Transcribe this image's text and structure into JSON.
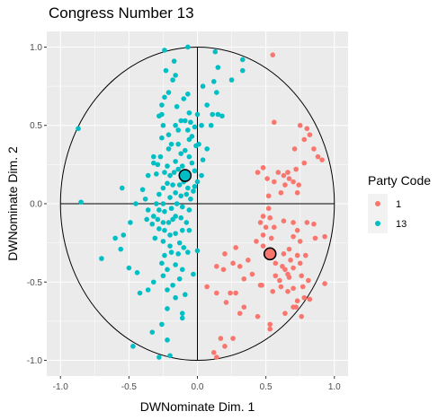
{
  "chart_data": {
    "type": "scatter",
    "title": "Congress Number  13",
    "xlabel": "DWNominate Dim. 1",
    "ylabel": "DWNominate Dim. 2",
    "xlim": [
      -1.1,
      1.1
    ],
    "ylim": [
      -1.1,
      1.1
    ],
    "x_ticks": [
      -1.0,
      -0.5,
      0.0,
      0.5,
      1.0
    ],
    "x_tick_labels": [
      "-1.0",
      "-0.5",
      "0.0",
      "0.5",
      "1.0"
    ],
    "y_ticks": [
      -1.0,
      -0.5,
      0.0,
      0.5,
      1.0
    ],
    "y_tick_labels": [
      "-1.0",
      "-0.5",
      "0.0",
      "0.5",
      "1.0"
    ],
    "grid": true,
    "panel_background": "#ebebeb",
    "reference_circle": {
      "center": [
        0,
        0
      ],
      "radius": 1
    },
    "legend": {
      "title": "Party Code",
      "placement": "right",
      "entries": [
        {
          "label": "1",
          "color": "#f8766d"
        },
        {
          "label": "13",
          "color": "#00bfc4"
        }
      ]
    },
    "series": [
      {
        "name": "1",
        "color": "#f8766d",
        "centroid": [
          0.53,
          -0.32
        ],
        "points": [
          [
            0.55,
            0.95
          ],
          [
            0.56,
            0.52
          ],
          [
            0.75,
            0.5
          ],
          [
            0.8,
            0.48
          ],
          [
            0.82,
            0.44
          ],
          [
            0.78,
            0.41
          ],
          [
            0.71,
            0.35
          ],
          [
            0.85,
            0.35
          ],
          [
            0.88,
            0.3
          ],
          [
            0.91,
            0.28
          ],
          [
            0.78,
            0.26
          ],
          [
            0.59,
            0.2
          ],
          [
            0.66,
            0.2
          ],
          [
            0.72,
            0.22
          ],
          [
            0.63,
            0.18
          ],
          [
            0.48,
            0.23
          ],
          [
            0.44,
            0.2
          ],
          [
            0.51,
            0.16
          ],
          [
            0.56,
            0.14
          ],
          [
            0.64,
            0.12
          ],
          [
            0.74,
            0.12
          ],
          [
            0.7,
            0.14
          ],
          [
            0.67,
            0.16
          ],
          [
            0.73,
            0.07
          ],
          [
            0.52,
            0.05
          ],
          [
            0.61,
            0.07
          ],
          [
            0.52,
            -0.03
          ],
          [
            0.48,
            -0.08
          ],
          [
            0.53,
            -0.09
          ],
          [
            0.46,
            -0.12
          ],
          [
            0.5,
            -0.15
          ],
          [
            0.56,
            -0.15
          ],
          [
            0.48,
            -0.2
          ],
          [
            0.43,
            -0.24
          ],
          [
            0.54,
            -0.22
          ],
          [
            0.48,
            -0.27
          ],
          [
            0.63,
            -0.11
          ],
          [
            0.7,
            -0.12
          ],
          [
            0.73,
            -0.17
          ],
          [
            0.8,
            -0.12
          ],
          [
            0.85,
            -0.13
          ],
          [
            0.86,
            -0.22
          ],
          [
            0.93,
            -0.21
          ],
          [
            0.7,
            -0.21
          ],
          [
            0.75,
            -0.24
          ],
          [
            0.67,
            -0.29
          ],
          [
            0.63,
            -0.32
          ],
          [
            0.73,
            -0.33
          ],
          [
            0.79,
            -0.33
          ],
          [
            0.68,
            -0.36
          ],
          [
            0.75,
            -0.38
          ],
          [
            0.57,
            -0.38
          ],
          [
            0.62,
            -0.4
          ],
          [
            0.64,
            -0.42
          ],
          [
            0.7,
            -0.41
          ],
          [
            0.66,
            -0.45
          ],
          [
            0.57,
            -0.46
          ],
          [
            0.6,
            -0.49
          ],
          [
            0.67,
            -0.47
          ],
          [
            0.76,
            -0.46
          ],
          [
            0.81,
            -0.49
          ],
          [
            0.93,
            -0.51
          ],
          [
            0.77,
            -0.53
          ],
          [
            0.7,
            -0.54
          ],
          [
            0.61,
            -0.53
          ],
          [
            0.55,
            -0.56
          ],
          [
            0.66,
            -0.56
          ],
          [
            0.46,
            -0.52
          ],
          [
            0.4,
            -0.45
          ],
          [
            0.34,
            -0.48
          ],
          [
            0.31,
            -0.4
          ],
          [
            0.37,
            -0.36
          ],
          [
            0.26,
            -0.38
          ],
          [
            0.19,
            -0.42
          ],
          [
            0.14,
            -0.4
          ],
          [
            0.2,
            -0.32
          ],
          [
            0.28,
            -0.28
          ],
          [
            0.07,
            -0.53
          ],
          [
            0.14,
            -0.57
          ],
          [
            0.24,
            -0.57
          ],
          [
            0.28,
            -0.57
          ],
          [
            0.21,
            -0.63
          ],
          [
            0.34,
            -0.66
          ],
          [
            0.31,
            -0.7
          ],
          [
            0.44,
            -0.72
          ],
          [
            0.53,
            -0.77
          ],
          [
            0.64,
            -0.7
          ],
          [
            0.7,
            -0.66
          ],
          [
            0.73,
            -0.62
          ],
          [
            0.78,
            -0.6
          ],
          [
            0.82,
            -0.61
          ],
          [
            0.76,
            -0.72
          ],
          [
            0.53,
            -0.8
          ],
          [
            0.26,
            -0.86
          ],
          [
            0.17,
            -0.86
          ],
          [
            0.2,
            -0.91
          ],
          [
            0.14,
            -0.98
          ],
          [
            0.12,
            -0.95
          ],
          [
            0.47,
            -0.52
          ],
          [
            0.72,
            -0.66
          ]
        ]
      },
      {
        "name": "13",
        "color": "#00bfc4",
        "centroid": [
          -0.09,
          0.18
        ],
        "points": [
          [
            -0.07,
            1.0
          ],
          [
            -0.17,
            0.91
          ],
          [
            0.13,
            0.97
          ],
          [
            -0.24,
            0.98
          ],
          [
            0.33,
            0.92
          ],
          [
            0.15,
            0.87
          ],
          [
            0.33,
            0.85
          ],
          [
            0.25,
            0.79
          ],
          [
            0.12,
            0.78
          ],
          [
            0.04,
            0.75
          ],
          [
            0.14,
            0.71
          ],
          [
            0.07,
            0.63
          ],
          [
            0.11,
            0.57
          ],
          [
            0.15,
            0.57
          ],
          [
            0.18,
            0.56
          ],
          [
            0.1,
            0.5
          ],
          [
            0.03,
            0.5
          ],
          [
            -0.02,
            0.49
          ],
          [
            0.07,
            0.35
          ],
          [
            0.01,
            0.38
          ],
          [
            0.04,
            0.28
          ],
          [
            -0.07,
            0.7
          ],
          [
            -0.1,
            0.67
          ],
          [
            -0.15,
            0.62
          ],
          [
            -0.06,
            0.58
          ],
          [
            0.0,
            0.57
          ],
          [
            -0.05,
            0.52
          ],
          [
            -0.09,
            0.53
          ],
          [
            -0.12,
            0.53
          ],
          [
            -0.16,
            0.5
          ],
          [
            -0.07,
            0.47
          ],
          [
            -0.14,
            0.47
          ],
          [
            -0.21,
            0.44
          ],
          [
            -0.21,
            0.35
          ],
          [
            -0.19,
            0.38
          ],
          [
            -0.26,
            0.42
          ],
          [
            -0.25,
            0.5
          ],
          [
            -0.28,
            0.56
          ],
          [
            -0.26,
            0.63
          ],
          [
            -0.24,
            0.68
          ],
          [
            -0.21,
            0.71
          ],
          [
            -0.18,
            0.79
          ],
          [
            -0.16,
            0.82
          ],
          [
            -0.23,
            0.85
          ],
          [
            -0.06,
            0.41
          ],
          [
            -0.04,
            0.43
          ],
          [
            -0.01,
            0.37
          ],
          [
            -0.09,
            0.34
          ],
          [
            -0.12,
            0.32
          ],
          [
            -0.14,
            0.38
          ],
          [
            -0.16,
            0.27
          ],
          [
            -0.22,
            0.24
          ],
          [
            -0.29,
            0.25
          ],
          [
            -0.27,
            0.3
          ],
          [
            -0.32,
            0.26
          ],
          [
            -0.3,
            0.19
          ],
          [
            -0.24,
            0.2
          ],
          [
            -0.2,
            0.18
          ],
          [
            -0.17,
            0.2
          ],
          [
            -0.14,
            0.22
          ],
          [
            -0.11,
            0.24
          ],
          [
            -0.06,
            0.3
          ],
          [
            -0.04,
            0.26
          ],
          [
            -0.02,
            0.21
          ],
          [
            0.03,
            0.18
          ],
          [
            0.0,
            0.14
          ],
          [
            -0.02,
            0.11
          ],
          [
            -0.07,
            0.1
          ],
          [
            -0.1,
            0.14
          ],
          [
            -0.13,
            0.12
          ],
          [
            -0.18,
            0.12
          ],
          [
            -0.22,
            0.13
          ],
          [
            -0.25,
            0.1
          ],
          [
            -0.28,
            0.06
          ],
          [
            -0.3,
            0.0
          ],
          [
            -0.25,
            0.0
          ],
          [
            -0.2,
            0.04
          ],
          [
            -0.16,
            0.07
          ],
          [
            -0.12,
            0.05
          ],
          [
            -0.08,
            0.06
          ],
          [
            -0.05,
            0.03
          ],
          [
            -0.06,
            -0.04
          ],
          [
            -0.11,
            -0.02
          ],
          [
            -0.15,
            0.0
          ],
          [
            -0.19,
            -0.03
          ],
          [
            -0.24,
            -0.05
          ],
          [
            -0.28,
            -0.04
          ],
          [
            -0.32,
            -0.08
          ],
          [
            -0.36,
            -0.04
          ],
          [
            -0.38,
            0.03
          ],
          [
            -0.37,
            -0.1
          ],
          [
            -0.33,
            -0.13
          ],
          [
            -0.29,
            -0.1
          ],
          [
            -0.25,
            -0.12
          ],
          [
            -0.21,
            -0.12
          ],
          [
            -0.16,
            -0.08
          ],
          [
            -0.12,
            -0.09
          ],
          [
            -0.08,
            -0.12
          ],
          [
            -0.06,
            -0.17
          ],
          [
            -0.11,
            -0.17
          ],
          [
            -0.16,
            -0.19
          ],
          [
            -0.2,
            -0.2
          ],
          [
            -0.24,
            -0.17
          ],
          [
            -0.28,
            -0.16
          ],
          [
            -0.31,
            -0.22
          ],
          [
            -0.25,
            -0.24
          ],
          [
            -0.2,
            -0.27
          ],
          [
            -0.13,
            -0.25
          ],
          [
            -0.1,
            -0.28
          ],
          [
            -0.07,
            -0.31
          ],
          [
            -0.14,
            -0.32
          ],
          [
            -0.19,
            -0.31
          ],
          [
            -0.24,
            -0.33
          ],
          [
            -0.26,
            -0.38
          ],
          [
            -0.22,
            -0.42
          ],
          [
            -0.16,
            -0.39
          ],
          [
            -0.11,
            -0.42
          ],
          [
            -0.13,
            -0.48
          ],
          [
            -0.18,
            -0.52
          ],
          [
            -0.25,
            -0.46
          ],
          [
            -0.32,
            -0.5
          ],
          [
            -0.36,
            -0.55
          ],
          [
            -0.42,
            -0.57
          ],
          [
            -0.44,
            -0.44
          ],
          [
            -0.5,
            -0.41
          ],
          [
            -0.56,
            -0.29
          ],
          [
            -0.6,
            -0.22
          ],
          [
            -0.7,
            -0.35
          ],
          [
            -0.54,
            -0.2
          ],
          [
            -0.49,
            -0.12
          ],
          [
            -0.45,
            0.0
          ],
          [
            -0.55,
            0.1
          ],
          [
            -0.4,
            0.09
          ],
          [
            -0.85,
            0.01
          ],
          [
            -0.87,
            0.48
          ],
          [
            -0.11,
            -0.73
          ],
          [
            -0.22,
            -0.67
          ],
          [
            -0.26,
            -0.77
          ],
          [
            -0.33,
            -0.82
          ],
          [
            -0.47,
            -0.91
          ],
          [
            -0.22,
            -0.87
          ],
          [
            -0.28,
            -0.98
          ],
          [
            -0.2,
            -0.97
          ],
          [
            -0.11,
            -0.7
          ],
          [
            -0.16,
            -0.6
          ],
          [
            -0.09,
            -0.58
          ],
          [
            -0.03,
            -0.45
          ],
          [
            0.0,
            -0.3
          ],
          [
            -0.18,
            -0.1
          ],
          [
            -0.36,
            0.18
          ],
          [
            -0.32,
            0.3
          ],
          [
            -0.26,
            0.57
          ],
          [
            -0.22,
            -0.55
          ],
          [
            -0.03,
            0.08
          ]
        ]
      }
    ]
  }
}
